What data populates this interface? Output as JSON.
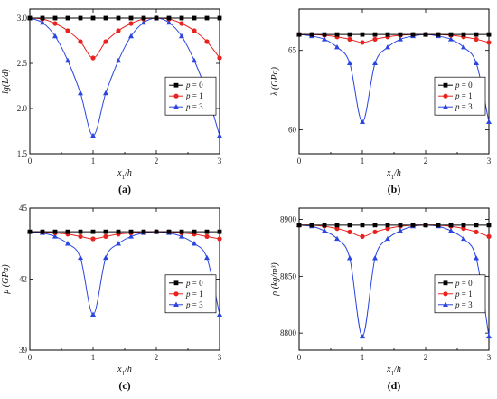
{
  "chart_data": [
    {
      "type": "line",
      "panel_label": "(a)",
      "xlabel": "x_1/h",
      "ylabel": "lg(L/d)",
      "xlim": [
        0,
        3
      ],
      "ylim": [
        1.5,
        3.1
      ],
      "yticks": [
        1.5,
        2.0,
        2.5,
        3.0
      ],
      "ytick_labels": [
        "1.5",
        "2.0",
        "2.5",
        "3.0"
      ],
      "xticks": [
        0,
        1,
        2,
        3
      ],
      "legend_position": "center-right",
      "x": [
        0,
        0.2,
        0.4,
        0.6,
        0.8,
        1.0,
        1.2,
        1.4,
        1.6,
        1.8,
        2.0,
        2.2,
        2.4,
        2.6,
        2.8,
        3.0
      ],
      "series": [
        {
          "name": "p = 0",
          "color": "#000000",
          "marker": "square",
          "values": [
            3.0,
            3.0,
            3.0,
            3.0,
            3.0,
            3.0,
            3.0,
            3.0,
            3.0,
            3.0,
            3.0,
            3.0,
            3.0,
            3.0,
            3.0,
            3.0
          ]
        },
        {
          "name": "p = 1",
          "color": "#e8231f",
          "marker": "circle",
          "values": [
            3.0,
            2.99,
            2.94,
            2.86,
            2.74,
            2.56,
            2.74,
            2.86,
            2.94,
            2.99,
            3.0,
            2.99,
            2.94,
            2.86,
            2.74,
            2.56
          ]
        },
        {
          "name": "p = 3",
          "color": "#2a45e0",
          "marker": "triangle",
          "values": [
            3.0,
            2.95,
            2.8,
            2.53,
            2.17,
            1.7,
            2.17,
            2.53,
            2.8,
            2.95,
            3.0,
            2.95,
            2.8,
            2.53,
            2.17,
            1.7
          ]
        }
      ]
    },
    {
      "type": "line",
      "panel_label": "(b)",
      "xlabel": "x_1/h",
      "ylabel": "λ (GPa)",
      "xlim": [
        0,
        3
      ],
      "ylim": [
        58.5,
        67.6
      ],
      "yticks": [
        60,
        65
      ],
      "ytick_labels": [
        "60",
        "65"
      ],
      "xticks": [
        0,
        1,
        2,
        3
      ],
      "legend_position": "center-right",
      "x": [
        0,
        0.2,
        0.4,
        0.6,
        0.8,
        1.0,
        1.2,
        1.4,
        1.6,
        1.8,
        2.0,
        2.2,
        2.4,
        2.6,
        2.8,
        3.0
      ],
      "series": [
        {
          "name": "p = 0",
          "color": "#000000",
          "marker": "square",
          "values": [
            66.0,
            66.0,
            66.0,
            66.0,
            66.0,
            66.0,
            66.0,
            66.0,
            66.0,
            66.0,
            66.0,
            66.0,
            66.0,
            66.0,
            66.0,
            66.0
          ]
        },
        {
          "name": "p = 1",
          "color": "#e8231f",
          "marker": "circle",
          "values": [
            66.0,
            66.0,
            65.95,
            65.85,
            65.7,
            65.5,
            65.7,
            65.85,
            65.95,
            66.0,
            66.0,
            66.0,
            65.95,
            65.85,
            65.7,
            65.5
          ]
        },
        {
          "name": "p = 3",
          "color": "#2a45e0",
          "marker": "triangle",
          "values": [
            66.0,
            65.9,
            65.7,
            65.2,
            64.2,
            60.5,
            64.2,
            65.2,
            65.7,
            65.9,
            66.0,
            65.9,
            65.7,
            65.2,
            64.2,
            60.5
          ]
        }
      ]
    },
    {
      "type": "line",
      "panel_label": "(c)",
      "xlabel": "x_1/h",
      "ylabel": "μ (GPa)",
      "xlim": [
        0,
        3
      ],
      "ylim": [
        39,
        45
      ],
      "yticks": [
        39,
        42,
        45
      ],
      "ytick_labels": [
        "39",
        "42",
        "45"
      ],
      "xticks": [
        0,
        1,
        2,
        3
      ],
      "legend_position": "center-right",
      "x": [
        0,
        0.2,
        0.4,
        0.6,
        0.8,
        1.0,
        1.2,
        1.4,
        1.6,
        1.8,
        2.0,
        2.2,
        2.4,
        2.6,
        2.8,
        3.0
      ],
      "series": [
        {
          "name": "p = 0",
          "color": "#000000",
          "marker": "square",
          "values": [
            44.0,
            44.0,
            44.0,
            44.0,
            44.0,
            44.0,
            44.0,
            44.0,
            44.0,
            44.0,
            44.0,
            44.0,
            44.0,
            44.0,
            44.0,
            44.0
          ]
        },
        {
          "name": "p = 1",
          "color": "#e8231f",
          "marker": "circle",
          "values": [
            44.0,
            44.0,
            43.95,
            43.9,
            43.8,
            43.7,
            43.8,
            43.9,
            43.95,
            44.0,
            44.0,
            44.0,
            43.95,
            43.9,
            43.8,
            43.7
          ]
        },
        {
          "name": "p = 3",
          "color": "#2a45e0",
          "marker": "triangle",
          "values": [
            44.0,
            43.95,
            43.8,
            43.5,
            42.9,
            40.5,
            42.9,
            43.5,
            43.8,
            43.95,
            44.0,
            43.95,
            43.8,
            43.5,
            42.9,
            40.5
          ]
        }
      ]
    },
    {
      "type": "line",
      "panel_label": "(d)",
      "xlabel": "x_1/h",
      "ylabel": "ρ (kg/m³)",
      "xlim": [
        0,
        3
      ],
      "ylim": [
        8785,
        8910
      ],
      "yticks": [
        8800,
        8850,
        8900
      ],
      "ytick_labels": [
        "8800",
        "8850",
        "8900"
      ],
      "xticks": [
        0,
        1,
        2,
        3
      ],
      "legend_position": "center-right",
      "x": [
        0,
        0.2,
        0.4,
        0.6,
        0.8,
        1.0,
        1.2,
        1.4,
        1.6,
        1.8,
        2.0,
        2.2,
        2.4,
        2.6,
        2.8,
        3.0
      ],
      "series": [
        {
          "name": "p = 0",
          "color": "#000000",
          "marker": "square",
          "values": [
            8895,
            8895,
            8895,
            8895,
            8895,
            8895,
            8895,
            8895,
            8895,
            8895,
            8895,
            8895,
            8895,
            8895,
            8895,
            8895
          ]
        },
        {
          "name": "p = 1",
          "color": "#e8231f",
          "marker": "circle",
          "values": [
            8895,
            8895,
            8894,
            8892,
            8889,
            8885,
            8889,
            8892,
            8894,
            8895,
            8895,
            8895,
            8894,
            8892,
            8889,
            8885
          ]
        },
        {
          "name": "p = 3",
          "color": "#2a45e0",
          "marker": "triangle",
          "values": [
            8895,
            8894,
            8890,
            8883,
            8866,
            8797,
            8866,
            8883,
            8890,
            8894,
            8895,
            8894,
            8890,
            8883,
            8866,
            8797
          ]
        }
      ]
    }
  ]
}
